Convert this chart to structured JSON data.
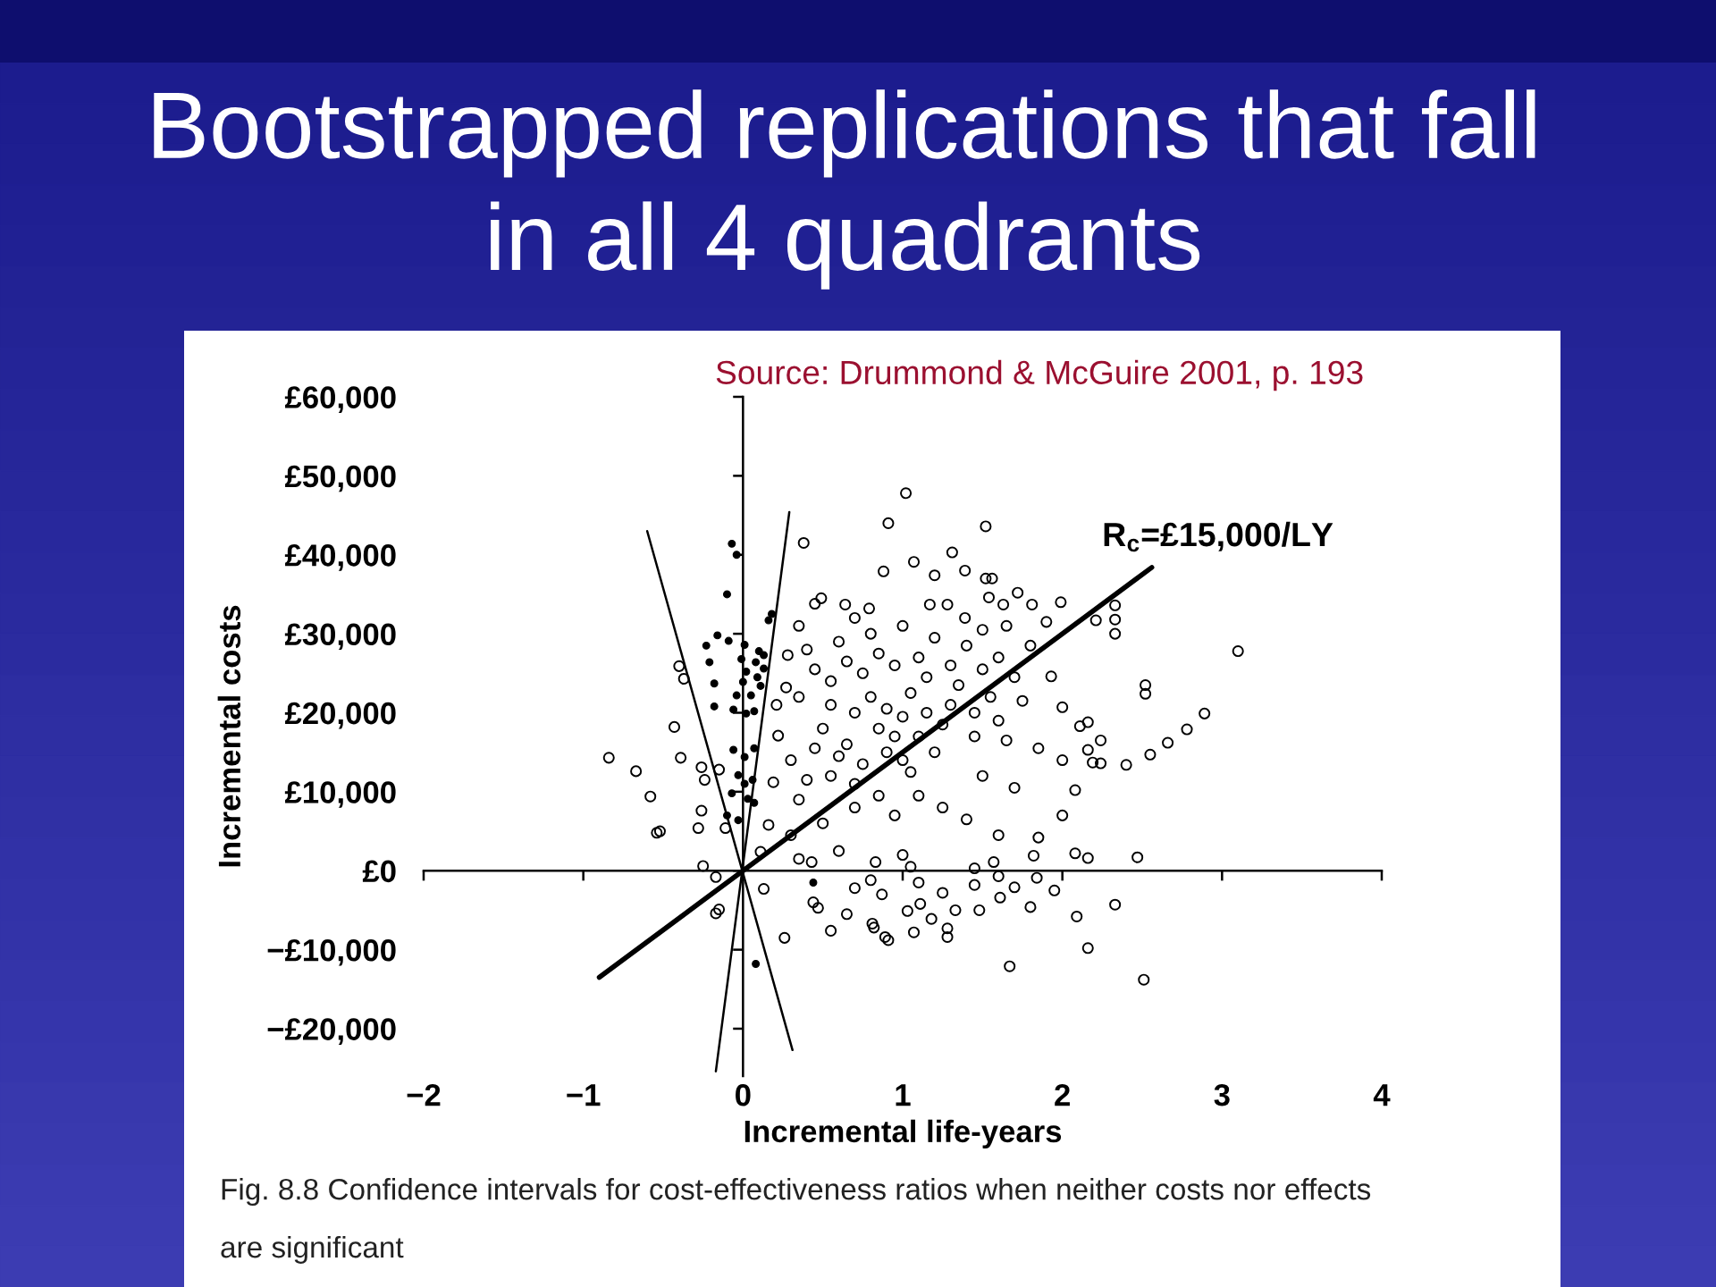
{
  "chart_data": {
    "type": "scatter",
    "title": "Bootstrapped replications that fall\nin all 4 quadrants",
    "xlabel": "Incremental life-years",
    "ylabel": "Incremental costs",
    "annotations": [
      "Source: Drummond & McGuire 2001, p. 193",
      "Fig. 8.8 Confidence intervals for cost-effectiveness ratios when neither costs nor effects\nare significant"
    ],
    "xlim": [
      -2,
      4
    ],
    "ylim": [
      -26000,
      60000
    ],
    "xticks": [
      {
        "value": -2,
        "label": "−2"
      },
      {
        "value": -1,
        "label": "−1"
      },
      0,
      1,
      2,
      3,
      4
    ],
    "yticks": [
      {
        "value": 60000,
        "label": "£60,000"
      },
      {
        "value": 50000,
        "label": "£50,000"
      },
      {
        "value": 40000,
        "label": "£40,000"
      },
      {
        "value": 30000,
        "label": "£30,000"
      },
      {
        "value": 20000,
        "label": "£20,000"
      },
      {
        "value": 10000,
        "label": "£10,000"
      },
      {
        "value": 0,
        "label": "£0"
      },
      {
        "value": -10000,
        "label": "−£10,000"
      },
      {
        "value": -20000,
        "label": "−£20,000"
      }
    ],
    "series": [
      {
        "marker": "circle",
        "color": "#000000",
        "x": [
          1.02,
          0.91,
          1.52,
          0.38,
          1.31,
          1.07,
          0.88,
          1.39,
          1.52,
          1.56,
          1.2,
          3.1,
          2.52,
          2.52,
          2.89,
          2.78,
          2.66,
          2.55,
          2.4,
          2.33,
          2.33,
          2.33,
          1.99,
          1.81,
          2.21,
          2.24,
          2.24,
          2.16,
          2.08,
          2.16,
          2.47,
          2.33,
          2.09,
          2.16,
          1.67,
          2.51,
          1.28,
          1.28,
          1.07,
          0.91,
          0.82,
          1.03,
          1.11,
          1.18,
          1.33,
          1.48,
          1.61,
          1.8,
          1.7,
          1.84,
          0.87,
          0.26,
          0.55,
          0.65,
          0.44,
          0.47,
          0.89,
          0.81,
          -0.17,
          -0.15,
          -0.17,
          0.13,
          -0.25,
          -0.58,
          -0.52,
          -0.28,
          -0.26,
          -0.11,
          -0.84,
          -0.67,
          -0.43,
          -0.39,
          -0.4,
          -0.37,
          -0.26,
          -0.24,
          -0.15,
          -0.54,
          0.45,
          0.49,
          0.64,
          0.79,
          1.17,
          1.28,
          1.39,
          1.54,
          1.63,
          1.72,
          1.9,
          0.28,
          0.27,
          0.21,
          0.22,
          0.19,
          0.16,
          0.11,
          1.93,
          2.0,
          2.11,
          2.16,
          2.19,
          2.08,
          2.0,
          1.85,
          1.82,
          0.43,
          0.83,
          1.57,
          0.4,
          0.6,
          0.8,
          1.0,
          1.2,
          1.4,
          1.6,
          1.8,
          0.35,
          0.55,
          0.75,
          0.95,
          1.15,
          1.35,
          1.55,
          1.75,
          0.3,
          0.5,
          0.7,
          0.85,
          1.0,
          1.1,
          1.25,
          1.45,
          1.65,
          1.85,
          2.0,
          0.35,
          0.55,
          0.75,
          0.9,
          1.05,
          1.5,
          1.7,
          0.3,
          0.5,
          0.7,
          0.95,
          1.4,
          1.6,
          0.6,
          1.0,
          0.65,
          0.8,
          0.9,
          1.05,
          1.15,
          1.2,
          0.95,
          1.0,
          0.7,
          0.85,
          1.1,
          1.25,
          0.6,
          0.45,
          0.4,
          0.65,
          0.85,
          1.1,
          1.3,
          1.5,
          1.7,
          1.45,
          1.6,
          1.3,
          0.55,
          0.45,
          0.35,
          0.7,
          1.5,
          1.65,
          0.35,
          0.8,
          1.1,
          1.45,
          1.05,
          1.45,
          0.7,
          1.25,
          1.95,
          1.6
        ],
        "values": [
          47800,
          44000,
          43600,
          41500,
          40300,
          39100,
          37900,
          38000,
          37000,
          37000,
          37400,
          27800,
          23500,
          22400,
          19900,
          17900,
          16200,
          14700,
          13400,
          33600,
          31800,
          30000,
          34000,
          33700,
          31700,
          16500,
          13600,
          18800,
          2200,
          1600,
          1700,
          -4300,
          -5800,
          -9800,
          -12100,
          -13800,
          -7300,
          -8400,
          -7800,
          -8800,
          -7200,
          -5100,
          -4200,
          -6100,
          -5000,
          -5000,
          -3400,
          -4600,
          -2100,
          -900,
          -3000,
          -8500,
          -7600,
          -5500,
          -4000,
          -4700,
          -8400,
          -6700,
          -5400,
          -4900,
          -800,
          -2300,
          600,
          9400,
          5000,
          5400,
          7600,
          5400,
          14300,
          12600,
          18200,
          14300,
          25900,
          24300,
          13100,
          11500,
          12800,
          4800,
          33800,
          34500,
          33700,
          33200,
          33700,
          33700,
          32000,
          34600,
          33700,
          35200,
          31500,
          27300,
          23200,
          21000,
          17100,
          11200,
          5800,
          2400,
          24600,
          20700,
          18300,
          15300,
          13700,
          10200,
          7000,
          4200,
          1900,
          1100,
          1100,
          1100,
          28000,
          29000,
          30000,
          31000,
          29500,
          28500,
          27000,
          28500,
          22000,
          24000,
          25000,
          26000,
          24500,
          23500,
          22000,
          21500,
          14000,
          18000,
          20000,
          18000,
          19500,
          17000,
          18500,
          17000,
          16500,
          15500,
          14000,
          9000,
          12000,
          13500,
          15000,
          12500,
          12000,
          10500,
          4500,
          6000,
          8000,
          7000,
          6500,
          4500,
          2500,
          2000,
          16000,
          22000,
          20500,
          22500,
          20000,
          15000,
          17000,
          14000,
          11000,
          9500,
          9500,
          8000,
          14500,
          15500,
          11500,
          26500,
          27500,
          27000,
          26000,
          25500,
          24500,
          20000,
          19000,
          21000,
          21000,
          25500,
          31000,
          32000,
          30500,
          31000,
          1500,
          -1200,
          -1500,
          -1800,
          500,
          300,
          -2200,
          -2800,
          -2500,
          -700
        ]
      },
      {
        "marker": "circle",
        "color": "#000000",
        "x": [
          -0.07,
          -0.04,
          -0.1,
          -0.16,
          -0.09,
          0.16,
          0.18,
          -0.23,
          0.01,
          0.1,
          -0.21,
          -0.01,
          0.02,
          0.0,
          -0.18,
          0.08,
          0.13,
          -0.18,
          -0.06,
          0.02,
          0.07,
          -0.04,
          0.05,
          0.09,
          0.11,
          -0.06,
          0.01,
          0.07,
          -0.03,
          0.01,
          0.06,
          -0.07,
          0.03,
          0.07,
          -0.1,
          -0.03,
          0.13,
          0.08,
          0.44
        ],
        "values": [
          41400,
          40000,
          35000,
          29800,
          29100,
          31700,
          32500,
          28500,
          28600,
          27800,
          26400,
          26800,
          25200,
          23900,
          23700,
          26400,
          25600,
          20800,
          20400,
          19900,
          20200,
          22200,
          22200,
          24500,
          23400,
          15300,
          14400,
          15500,
          12100,
          11000,
          11500,
          9800,
          9100,
          8600,
          7000,
          6400,
          27300,
          -11800,
          -1500
        ]
      },
      {
        "type": "line",
        "name": "R$_{c}$=£15,000/LY",
        "color": "#000000",
        "x": [
          -0.9,
          2.56
        ],
        "values": [
          -13500,
          38400
        ]
      },
      {
        "type": "line",
        "color": "#000000",
        "x": [
          -0.17,
          0.29
        ],
        "values": [
          -25400,
          45400
        ]
      },
      {
        "type": "line",
        "color": "#000000",
        "x": [
          -0.6,
          0.31
        ],
        "values": [
          43000,
          -22700
        ]
      }
    ]
  }
}
